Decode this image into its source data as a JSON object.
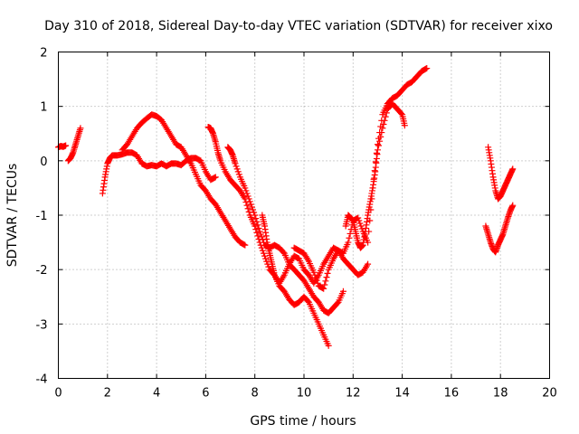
{
  "chart_data": {
    "type": "scatter",
    "title": "Day 310 of 2018, Sidereal Day-to-day VTEC variation (SDTVAR) for receiver xixo",
    "xlabel": "GPS time / hours",
    "ylabel": "SDTVAR / TECUs",
    "xlim": [
      0,
      20
    ],
    "ylim": [
      -4,
      2
    ],
    "xticks": [
      "0",
      "2",
      "4",
      "6",
      "8",
      "10",
      "12",
      "14",
      "16",
      "18",
      "20"
    ],
    "yticks": [
      "-4",
      "-3",
      "-2",
      "-1",
      "0",
      "1",
      "2"
    ],
    "grid": true,
    "marker": "+",
    "color": "#ff0000",
    "series": [
      {
        "name": "seg1",
        "x": [
          0.0,
          0.1,
          0.2,
          0.3
        ],
        "y": [
          0.25,
          0.27,
          0.26,
          0.28
        ]
      },
      {
        "name": "seg2",
        "x": [
          0.4,
          0.5,
          0.6,
          0.7,
          0.8,
          0.9
        ],
        "y": [
          0.0,
          0.05,
          0.15,
          0.3,
          0.45,
          0.6
        ]
      },
      {
        "name": "seg3",
        "x": [
          1.8,
          1.9,
          2.0,
          2.1,
          2.2,
          2.4,
          2.6,
          2.8,
          3.0,
          3.2,
          3.4,
          3.6,
          3.8,
          4.0,
          4.2,
          4.4,
          4.6,
          4.8,
          5.0,
          5.2,
          5.4,
          5.6,
          5.8,
          6.0,
          6.2,
          6.4
        ],
        "y": [
          -0.6,
          -0.3,
          -0.05,
          0.05,
          0.1,
          0.1,
          0.12,
          0.15,
          0.15,
          0.1,
          -0.05,
          -0.1,
          -0.08,
          -0.1,
          -0.05,
          -0.1,
          -0.05,
          -0.05,
          -0.08,
          0.0,
          0.05,
          0.05,
          0.0,
          -0.2,
          -0.35,
          -0.3
        ]
      },
      {
        "name": "seg4",
        "x": [
          2.6,
          2.8,
          3.0,
          3.2,
          3.4,
          3.6,
          3.8,
          4.0,
          4.2,
          4.4,
          4.6,
          4.8,
          5.0,
          5.2,
          5.4,
          5.6,
          5.8,
          6.0,
          6.2,
          6.4,
          6.6,
          6.8,
          7.0,
          7.2,
          7.4,
          7.6
        ],
        "y": [
          0.2,
          0.3,
          0.45,
          0.6,
          0.7,
          0.78,
          0.85,
          0.82,
          0.75,
          0.6,
          0.45,
          0.3,
          0.25,
          0.1,
          -0.05,
          -0.25,
          -0.45,
          -0.55,
          -0.7,
          -0.8,
          -0.95,
          -1.1,
          -1.25,
          -1.4,
          -1.5,
          -1.55
        ]
      },
      {
        "name": "seg5",
        "x": [
          6.1,
          6.2,
          6.3,
          6.4,
          6.5,
          6.6,
          6.8,
          7.0,
          7.2,
          7.4,
          7.6,
          7.8,
          8.0,
          8.2,
          8.4,
          8.6,
          8.8,
          9.0,
          9.2,
          9.4,
          9.6,
          9.8,
          10.0,
          10.2,
          10.4,
          10.6,
          10.8,
          11.0
        ],
        "y": [
          0.62,
          0.6,
          0.5,
          0.35,
          0.15,
          0.0,
          -0.2,
          -0.35,
          -0.45,
          -0.55,
          -0.7,
          -1.0,
          -1.2,
          -1.5,
          -1.75,
          -2.0,
          -2.1,
          -2.3,
          -2.4,
          -2.55,
          -2.65,
          -2.6,
          -2.5,
          -2.6,
          -2.8,
          -3.0,
          -3.2,
          -3.4
        ]
      },
      {
        "name": "seg6",
        "x": [
          6.9,
          7.0,
          7.1,
          7.2,
          7.4,
          7.6,
          7.8,
          8.0,
          8.2,
          8.4,
          8.6,
          8.8,
          9.0,
          9.2,
          9.4,
          9.6,
          9.8,
          10.0,
          10.2,
          10.4,
          10.6,
          10.8,
          11.0,
          11.2,
          11.4,
          11.6
        ],
        "y": [
          0.25,
          0.2,
          0.1,
          -0.05,
          -0.3,
          -0.5,
          -0.75,
          -1.0,
          -1.3,
          -1.55,
          -1.6,
          -1.55,
          -1.6,
          -1.7,
          -1.9,
          -2.0,
          -2.1,
          -2.2,
          -2.35,
          -2.5,
          -2.6,
          -2.75,
          -2.8,
          -2.7,
          -2.6,
          -2.4
        ]
      },
      {
        "name": "seg7",
        "x": [
          8.3,
          8.4,
          8.5,
          8.6,
          8.7,
          8.8,
          9.0,
          9.2,
          9.4,
          9.6,
          9.8,
          10.0,
          10.2,
          10.4,
          10.6,
          10.8,
          11.0,
          11.2,
          11.4,
          11.6,
          11.8,
          12.0,
          12.2,
          12.4,
          12.6
        ],
        "y": [
          -1.0,
          -1.2,
          -1.5,
          -1.7,
          -1.9,
          -2.1,
          -2.25,
          -2.1,
          -1.9,
          -1.75,
          -1.8,
          -2.0,
          -2.1,
          -2.25,
          -2.1,
          -1.9,
          -1.75,
          -1.6,
          -1.65,
          -1.8,
          -1.9,
          -2.0,
          -2.1,
          -2.05,
          -1.9
        ]
      },
      {
        "name": "seg8",
        "x": [
          9.6,
          9.8,
          10.0,
          10.2,
          10.4,
          10.6,
          10.8,
          11.0,
          11.2,
          11.4,
          11.6,
          11.8,
          12.0,
          12.2,
          12.4,
          12.6,
          12.8,
          13.0,
          13.2,
          13.4,
          13.6,
          13.8,
          14.0,
          14.2,
          14.4,
          14.6,
          14.8,
          15.0
        ],
        "y": [
          -1.6,
          -1.65,
          -1.7,
          -1.85,
          -2.05,
          -2.3,
          -2.35,
          -2.0,
          -1.8,
          -1.65,
          -1.7,
          -1.5,
          -1.1,
          -1.05,
          -1.3,
          -1.5,
          -0.5,
          0.3,
          0.85,
          1.05,
          1.15,
          1.2,
          1.3,
          1.4,
          1.45,
          1.55,
          1.65,
          1.7
        ]
      },
      {
        "name": "seg9",
        "x": [
          11.7,
          11.8,
          11.9,
          12.0,
          12.1,
          12.2,
          12.3,
          12.4,
          12.5,
          12.6,
          12.7,
          12.8,
          12.9,
          13.0,
          13.2,
          13.4,
          13.6,
          13.8,
          14.0,
          14.1
        ],
        "y": [
          -1.2,
          -1.0,
          -1.05,
          -1.1,
          -1.3,
          -1.5,
          -1.6,
          -1.55,
          -1.3,
          -1.0,
          -0.75,
          -0.5,
          -0.2,
          0.2,
          0.6,
          0.95,
          1.05,
          0.95,
          0.85,
          0.65
        ]
      },
      {
        "name": "seg10",
        "x": [
          17.5,
          17.6,
          17.7,
          17.8,
          17.9,
          18.0,
          18.1,
          18.2,
          18.3,
          18.4,
          18.5
        ],
        "y": [
          0.25,
          0.0,
          -0.3,
          -0.55,
          -0.7,
          -0.65,
          -0.55,
          -0.45,
          -0.35,
          -0.25,
          -0.15
        ]
      },
      {
        "name": "seg11",
        "x": [
          17.4,
          17.5,
          17.6,
          17.7,
          17.8,
          17.9,
          18.0,
          18.1,
          18.2,
          18.3,
          18.4,
          18.5
        ],
        "y": [
          -1.2,
          -1.35,
          -1.5,
          -1.62,
          -1.68,
          -1.55,
          -1.45,
          -1.35,
          -1.2,
          -1.05,
          -0.92,
          -0.82
        ]
      }
    ]
  }
}
